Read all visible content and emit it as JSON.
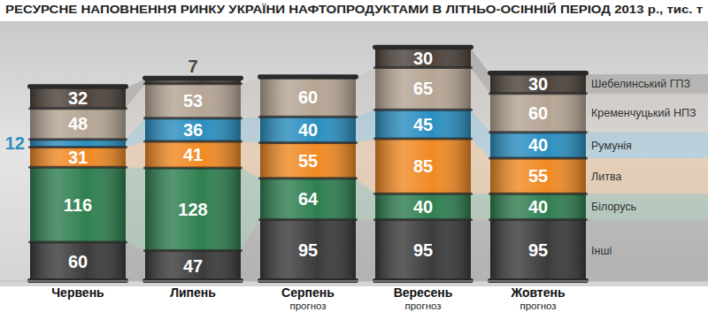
{
  "chart_data": {
    "type": "bar",
    "title": "РЕСУРСНЕ НАПОВНЕННЯ РИНКУ УКРАЇНИ НАФТОПРОДУКТАМИ В ЛІТНЬО-ОСІННІЙ ПЕРІОД 2013 р., тис. т",
    "categories": [
      "Червень",
      "Липень",
      "Серпень",
      "Вересень",
      "Жовтень"
    ],
    "category_notes": [
      null,
      null,
      "прогноз",
      "прогноз",
      "прогноз"
    ],
    "stacked": true,
    "data_labels": true,
    "tick_labels": false,
    "grid": false,
    "ylim": [
      0,
      380
    ],
    "series": [
      {
        "name": "Інші",
        "color": "#3b3b3b",
        "values": [
          60,
          47,
          95,
          95,
          95
        ]
      },
      {
        "name": "Білорусь",
        "color": "#2f7f50",
        "values": [
          116,
          128,
          64,
          40,
          40
        ]
      },
      {
        "name": "Литва",
        "color": "#f08a24",
        "values": [
          31,
          41,
          55,
          85,
          55
        ]
      },
      {
        "name": "Румунія",
        "color": "#2b8fc1",
        "values": [
          12,
          36,
          40,
          45,
          40
        ]
      },
      {
        "name": "Кременчуцький НПЗ",
        "color": "#b5a594",
        "values": [
          48,
          53,
          60,
          65,
          60
        ]
      },
      {
        "name": "Шебелинський ГПЗ",
        "color": "#4d433c",
        "values": [
          32,
          7,
          null,
          30,
          30
        ]
      }
    ]
  }
}
